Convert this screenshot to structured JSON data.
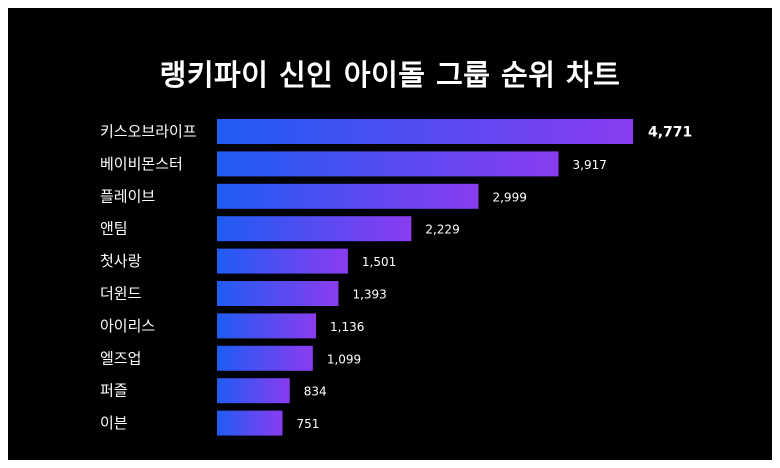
{
  "chart_data": {
    "type": "bar",
    "orientation": "horizontal",
    "title": "랭키파이 신인 아이돌 그룹 순위 차트",
    "categories": [
      "키스오브라이프",
      "베이비몬스터",
      "플레이브",
      "앤팀",
      "첫사랑",
      "더윈드",
      "아이리스",
      "엘즈업",
      "퍼즐",
      "이븐"
    ],
    "values": [
      4771,
      3917,
      2999,
      2229,
      1501,
      1393,
      1136,
      1099,
      834,
      751
    ],
    "value_labels": [
      "4,771",
      "3,917",
      "2,999",
      "2,229",
      "1,501",
      "1,393",
      "1,136",
      "1,099",
      "834",
      "751"
    ],
    "grid": false,
    "legend": "none",
    "colors": {
      "background": "#000000",
      "bar_start": "#1f5cf2",
      "bar_end": "#8a3cf0",
      "text": "#ffffff"
    }
  }
}
